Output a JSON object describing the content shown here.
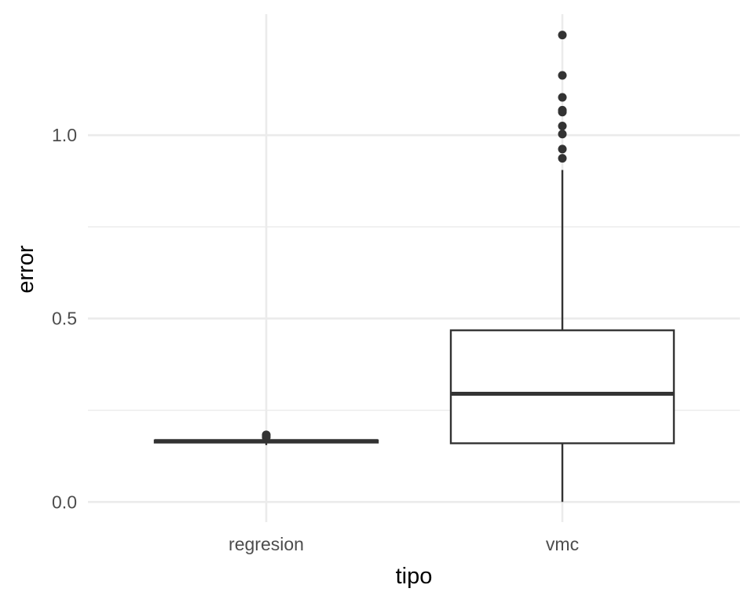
{
  "chart_data": {
    "type": "boxplot",
    "xlabel": "tipo",
    "ylabel": "error",
    "categories": [
      "regresion",
      "vmc"
    ],
    "ylim": [
      -0.055,
      1.33
    ],
    "yticks": [
      0.0,
      0.5,
      1.0
    ],
    "ytick_labels": [
      "0.0",
      "0.5",
      "1.0"
    ],
    "grid": true,
    "legend": "none",
    "colors": {
      "line": "#333333",
      "grid": "#ebebeb",
      "fill": "#ffffff"
    },
    "boxes": [
      {
        "category": "regresion",
        "whisker_low": 0.155,
        "q1": 0.162,
        "median": 0.166,
        "q3": 0.168,
        "whisker_high": 0.172,
        "outliers": [
          0.176,
          0.181,
          0.183
        ]
      },
      {
        "category": "vmc",
        "whisker_low": 0.0,
        "q1": 0.16,
        "median": 0.295,
        "q3": 0.468,
        "whisker_high": 0.905,
        "outliers": [
          0.937,
          0.962,
          1.003,
          1.025,
          1.063,
          1.068,
          1.103,
          1.163,
          1.273
        ]
      }
    ]
  }
}
